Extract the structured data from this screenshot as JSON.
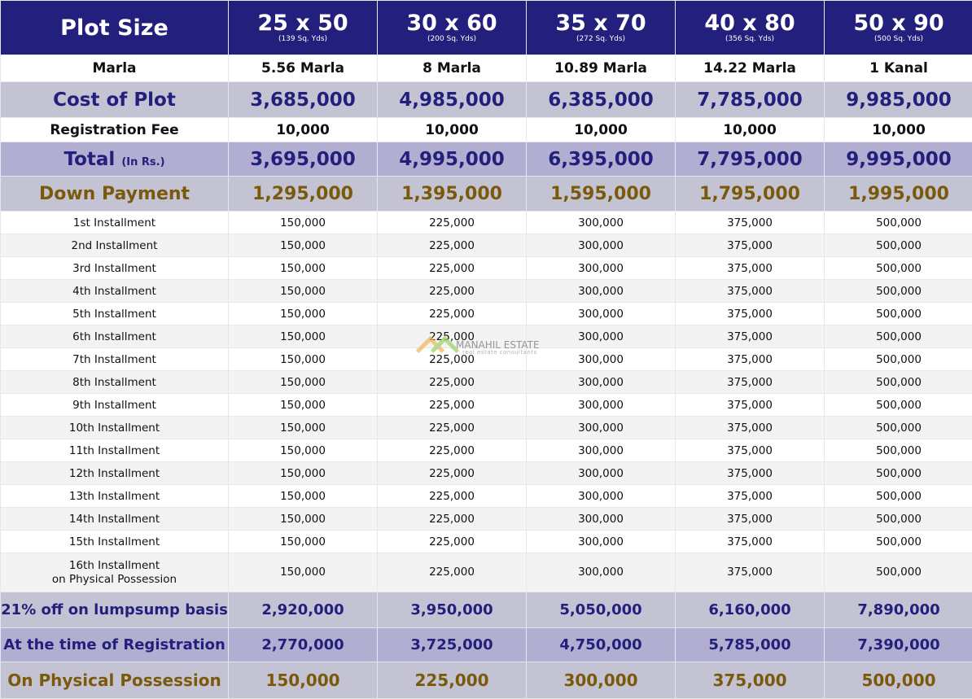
{
  "header": {
    "label": "Plot Size",
    "sizes": [
      {
        "dim": "25 x 50",
        "yds": "(139 Sq. Yds)"
      },
      {
        "dim": "30 x 60",
        "yds": "(200 Sq. Yds)"
      },
      {
        "dim": "35 x 70",
        "yds": "(272 Sq. Yds)"
      },
      {
        "dim": "40 x 80",
        "yds": "(356 Sq. Yds)"
      },
      {
        "dim": "50 x 90",
        "yds": "(500 Sq. Yds)"
      }
    ]
  },
  "marla": {
    "label": "Marla",
    "values": [
      "5.56 Marla",
      "8 Marla",
      "10.89 Marla",
      "14.22 Marla",
      "1 Kanal"
    ]
  },
  "cost": {
    "label": "Cost of Plot",
    "values": [
      "3,685,000",
      "4,985,000",
      "6,385,000",
      "7,785,000",
      "9,985,000"
    ]
  },
  "registration_fee": {
    "label": "Registration Fee",
    "values": [
      "10,000",
      "10,000",
      "10,000",
      "10,000",
      "10,000"
    ]
  },
  "total": {
    "label": "Total",
    "unit": "(In Rs.)",
    "values": [
      "3,695,000",
      "4,995,000",
      "6,395,000",
      "7,795,000",
      "9,995,000"
    ]
  },
  "down_payment": {
    "label": "Down Payment",
    "values": [
      "1,295,000",
      "1,395,000",
      "1,595,000",
      "1,795,000",
      "1,995,000"
    ]
  },
  "installments": {
    "amounts": [
      "150,000",
      "225,000",
      "300,000",
      "375,000",
      "500,000"
    ],
    "labels": [
      "1st Installment",
      "2nd Installment",
      "3rd Installment",
      "4th Installment",
      "5th Installment",
      "6th Installment",
      "7th Installment",
      "8th Installment",
      "9th Installment",
      "10th Installment",
      "11th Installment",
      "12th Installment",
      "13th Installment",
      "14th Installment",
      "15th Installment"
    ],
    "last": {
      "label": "16th Installment",
      "sublabel": "on Physical Possession"
    }
  },
  "lumpsum": {
    "label": "21% off on lumpsump basis",
    "values": [
      "2,920,000",
      "3,950,000",
      "5,050,000",
      "6,160,000",
      "7,890,000"
    ]
  },
  "at_registration": {
    "label": "At the time of Registration",
    "values": [
      "2,770,000",
      "3,725,000",
      "4,750,000",
      "5,785,000",
      "7,390,000"
    ]
  },
  "on_possession": {
    "label": "On Physical Possession",
    "values": [
      "150,000",
      "225,000",
      "300,000",
      "375,000",
      "500,000"
    ]
  },
  "watermark": {
    "title": "MANAHIL ESTATE",
    "tagline": "real estate consultants"
  }
}
